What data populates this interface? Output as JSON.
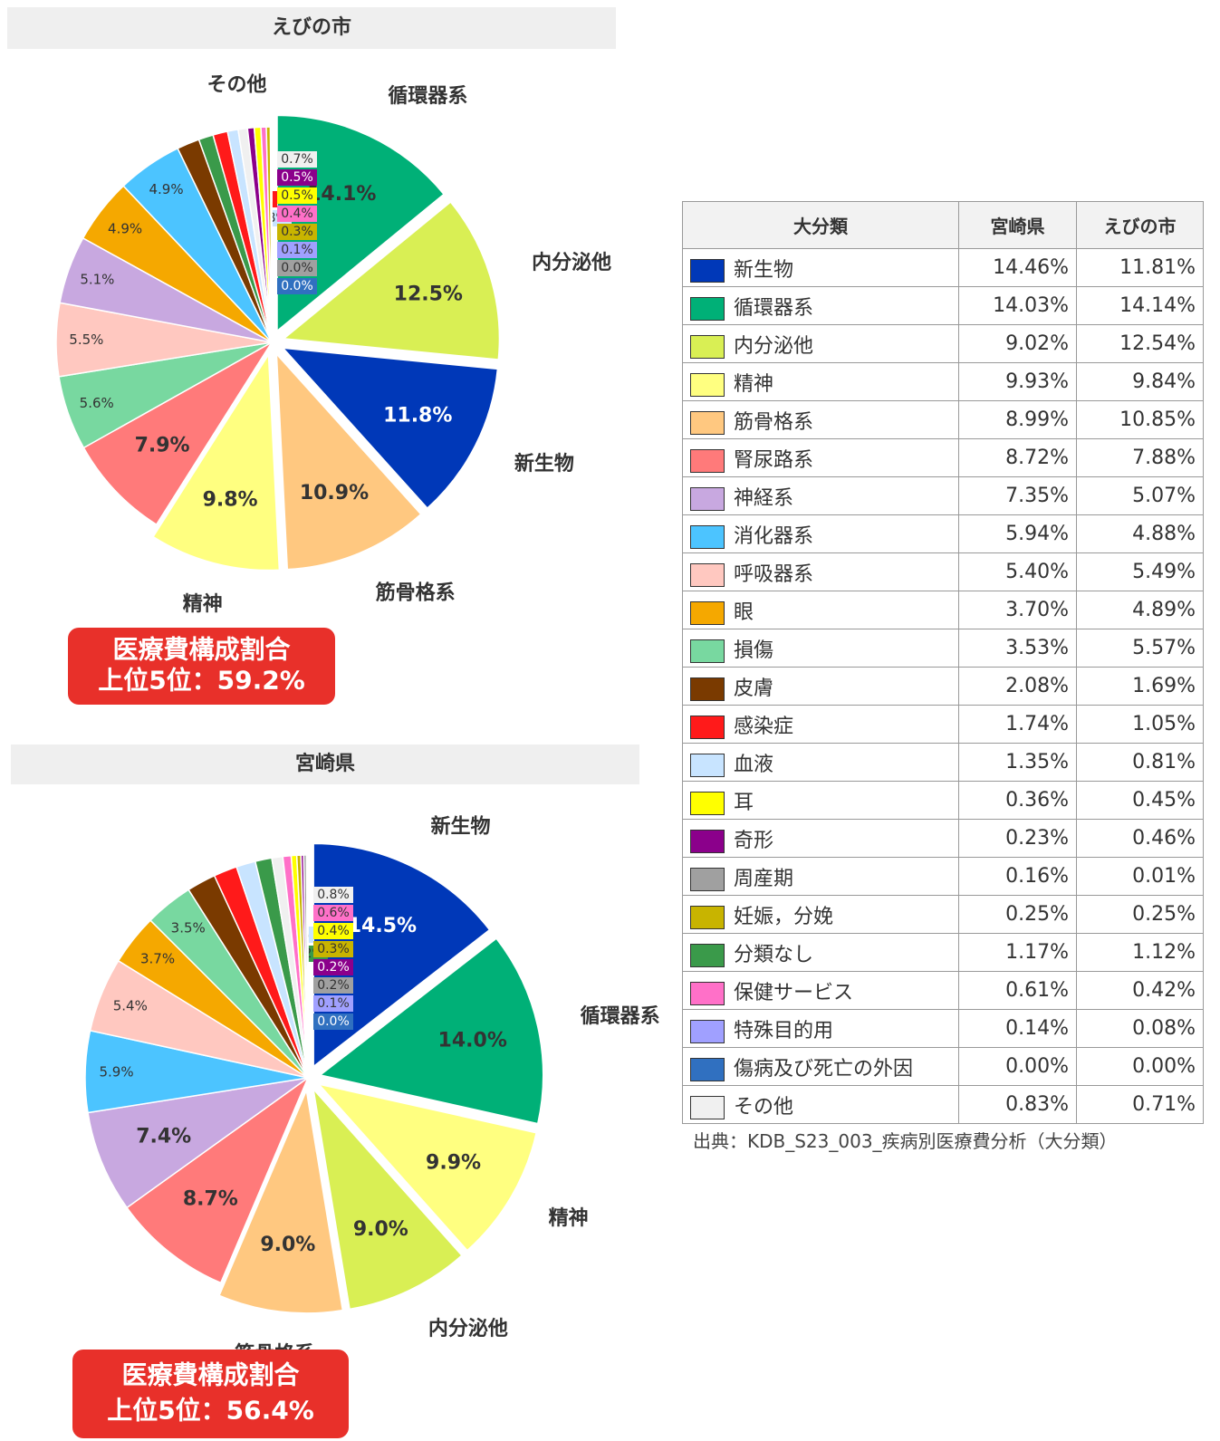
{
  "chart_data": [
    {
      "type": "pie",
      "title": "えびの市",
      "categories": [
        "循環器系",
        "内分泌他",
        "新生物",
        "筋骨格系",
        "精神",
        null,
        null,
        null,
        null,
        null,
        null,
        null,
        null,
        null,
        null,
        "その他",
        null,
        null,
        null,
        null,
        null,
        null,
        null
      ],
      "values": [
        14.1,
        12.5,
        11.8,
        10.9,
        9.8,
        7.9,
        5.6,
        5.5,
        5.1,
        4.9,
        4.9,
        1.7,
        1.1,
        1.1,
        0.8,
        0.7,
        0.5,
        0.5,
        0.4,
        0.3,
        0.1,
        0.0,
        0.0
      ],
      "value_labels": [
        "14.1%",
        "12.5%",
        "11.8%",
        "10.9%",
        "9.8%",
        "7.9%",
        "5.6%",
        "5.5%",
        "5.1%",
        "4.9%",
        "4.9%",
        "1.7%",
        "1.1%",
        "1.1%",
        "0.8%",
        "0.7%",
        "0.5%",
        "0.5%",
        "0.4%",
        "0.3%",
        "0.1%",
        "0.0%",
        "0.0%"
      ],
      "colors": [
        "#00b077",
        "#d9ef54",
        "#0038b8",
        "#ffc880",
        "#ffff80",
        "#ff7a7a",
        "#78d8a0",
        "#ffc8c0",
        "#c8a8e0",
        "#f5a800",
        "#4cc4ff",
        "#7a3a00",
        "#3a9a4a",
        "#ff1a1a",
        "#c8e4ff",
        "#f0f0f0",
        "#8b008b",
        "#ffff00",
        "#ff70c8",
        "#c8b400",
        "#a0a0ff",
        "#a0a0a0",
        "#3070c0"
      ],
      "annotation": [
        "医療費構成割合",
        "上位5位：59.2%"
      ]
    },
    {
      "type": "pie",
      "title": "宮崎県",
      "categories": [
        "新生物",
        "循環器系",
        "精神",
        "内分泌他",
        "筋骨格系",
        null,
        null,
        null,
        null,
        null,
        null,
        null,
        null,
        null,
        null,
        null,
        null,
        null,
        null,
        null,
        null,
        null,
        null
      ],
      "values": [
        14.5,
        14.0,
        9.9,
        9.0,
        9.0,
        8.7,
        7.4,
        5.9,
        5.4,
        3.7,
        3.5,
        2.1,
        1.7,
        1.4,
        1.2,
        0.8,
        0.6,
        0.4,
        0.3,
        0.2,
        0.2,
        0.1,
        0.0
      ],
      "value_labels": [
        "14.5%",
        "14.0%",
        "9.9%",
        "9.0%",
        "9.0%",
        "8.7%",
        "7.4%",
        "5.9%",
        "5.4%",
        "3.7%",
        "3.5%",
        "2.1%",
        "1.7%",
        "1.4%",
        "1.2%",
        "0.8%",
        "0.6%",
        "0.4%",
        "0.3%",
        "0.2%",
        "0.2%",
        "0.1%",
        "0.0%"
      ],
      "colors": [
        "#0038b8",
        "#00b077",
        "#ffff80",
        "#d9ef54",
        "#ffc880",
        "#ff7a7a",
        "#c8a8e0",
        "#4cc4ff",
        "#ffc8c0",
        "#f5a800",
        "#78d8a0",
        "#7a3a00",
        "#ff1a1a",
        "#c8e4ff",
        "#3a9a4a",
        "#f0f0f0",
        "#ff70c8",
        "#ffff00",
        "#c8b400",
        "#8b008b",
        "#a0a0a0",
        "#a0a0ff",
        "#3070c0"
      ],
      "annotation": [
        "医療費構成割合",
        "上位5位：56.4%"
      ]
    }
  ],
  "table": {
    "columns": [
      "大分類",
      "宮崎県",
      "えびの市"
    ],
    "rows": [
      [
        "新生物",
        "14.46%",
        "11.81%"
      ],
      [
        "循環器系",
        "14.03%",
        "14.14%"
      ],
      [
        "内分泌他",
        "9.02%",
        "12.54%"
      ],
      [
        "精神",
        "9.93%",
        "9.84%"
      ],
      [
        "筋骨格系",
        "8.99%",
        "10.85%"
      ],
      [
        "腎尿路系",
        "8.72%",
        "7.88%"
      ],
      [
        "神経系",
        "7.35%",
        "5.07%"
      ],
      [
        "消化器系",
        "5.94%",
        "4.88%"
      ],
      [
        "呼吸器系",
        "5.40%",
        "5.49%"
      ],
      [
        "眼",
        "3.70%",
        "4.89%"
      ],
      [
        "損傷",
        "3.53%",
        "5.57%"
      ],
      [
        "皮膚",
        "2.08%",
        "1.69%"
      ],
      [
        "感染症",
        "1.74%",
        "1.05%"
      ],
      [
        "血液",
        "1.35%",
        "0.81%"
      ],
      [
        "耳",
        "0.36%",
        "0.45%"
      ],
      [
        "奇形",
        "0.23%",
        "0.46%"
      ],
      [
        "周産期",
        "0.16%",
        "0.01%"
      ],
      [
        "妊娠，分娩",
        "0.25%",
        "0.25%"
      ],
      [
        "分類なし",
        "1.17%",
        "1.12%"
      ],
      [
        "保健サービス",
        "0.61%",
        "0.42%"
      ],
      [
        "特殊目的用",
        "0.14%",
        "0.08%"
      ],
      [
        "傷病及び死亡の外因",
        "0.00%",
        "0.00%"
      ],
      [
        "その他",
        "0.83%",
        "0.71%"
      ]
    ],
    "colors": [
      "#0038b8",
      "#00b077",
      "#d9ef54",
      "#ffff80",
      "#ffc880",
      "#ff7a7a",
      "#c8a8e0",
      "#4cc4ff",
      "#ffc8c0",
      "#f5a800",
      "#78d8a0",
      "#7a3a00",
      "#ff1a1a",
      "#c8e4ff",
      "#ffff00",
      "#8b008b",
      "#a0a0a0",
      "#c8b400",
      "#3a9a4a",
      "#ff70c8",
      "#a0a0ff",
      "#3070c0",
      "#f0f0f0"
    ]
  },
  "source": "出典：KDB_S23_003_疾病別医療費分析（大分類）"
}
